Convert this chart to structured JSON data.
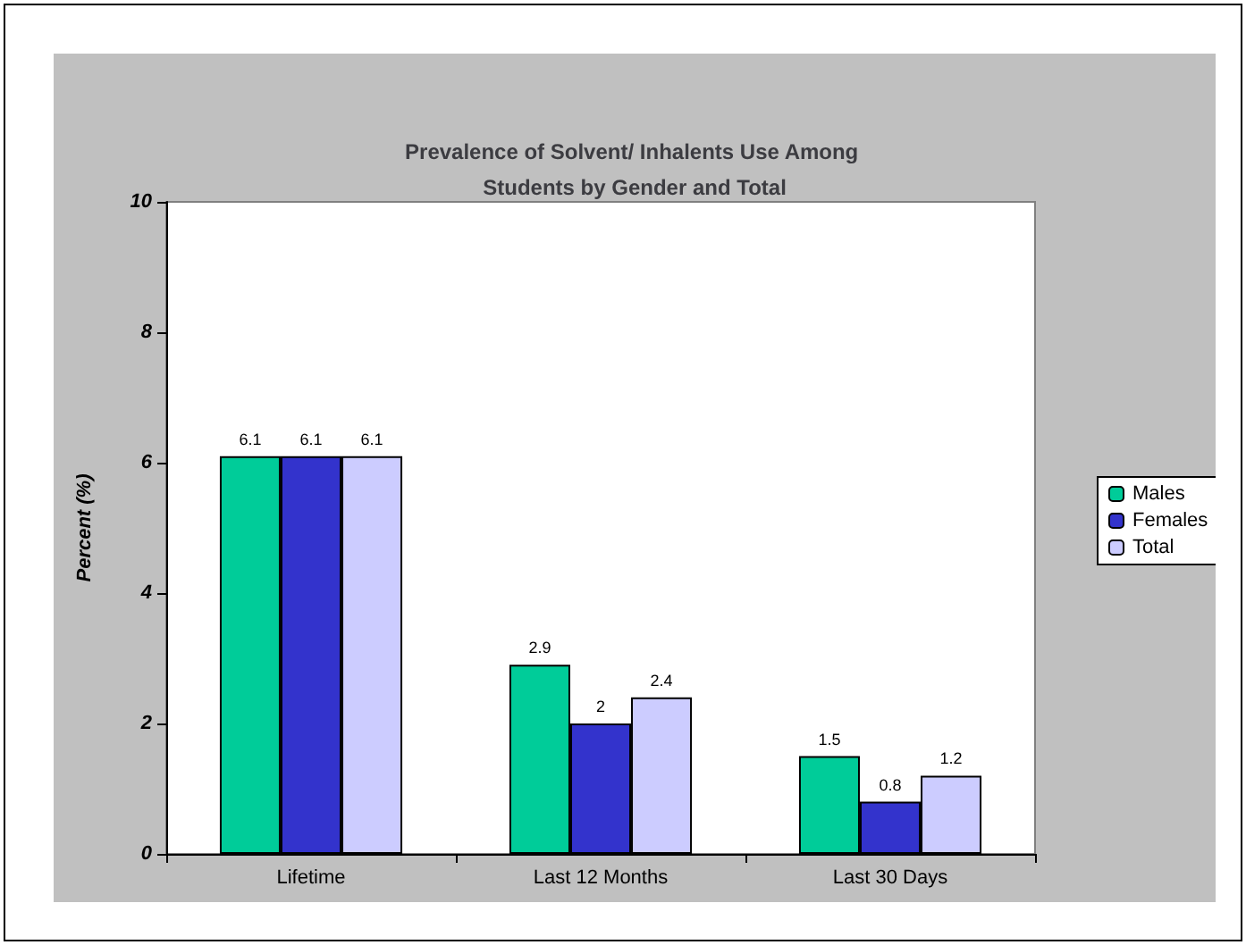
{
  "chart_data": {
    "type": "bar",
    "title": "Prevalence of Solvent/ Inhalents Use Among Students by Gender and Total",
    "ylabel": "Percent (%)",
    "categories": [
      "Lifetime",
      "Last 12 Months",
      "Last 30 Days"
    ],
    "series": [
      {
        "name": "Males",
        "color": "#00cc99",
        "values": [
          6.1,
          2.9,
          1.5
        ]
      },
      {
        "name": "Females",
        "color": "#3333cc",
        "values": [
          6.1,
          2,
          0.8
        ]
      },
      {
        "name": "Total",
        "color": "#ccccff",
        "values": [
          6.1,
          2.4,
          1.2
        ]
      }
    ],
    "ylim": [
      0,
      10
    ],
    "yticks": [
      0,
      2,
      4,
      6,
      8,
      10
    ],
    "grid": false,
    "legend": "right",
    "data_labels": true
  }
}
